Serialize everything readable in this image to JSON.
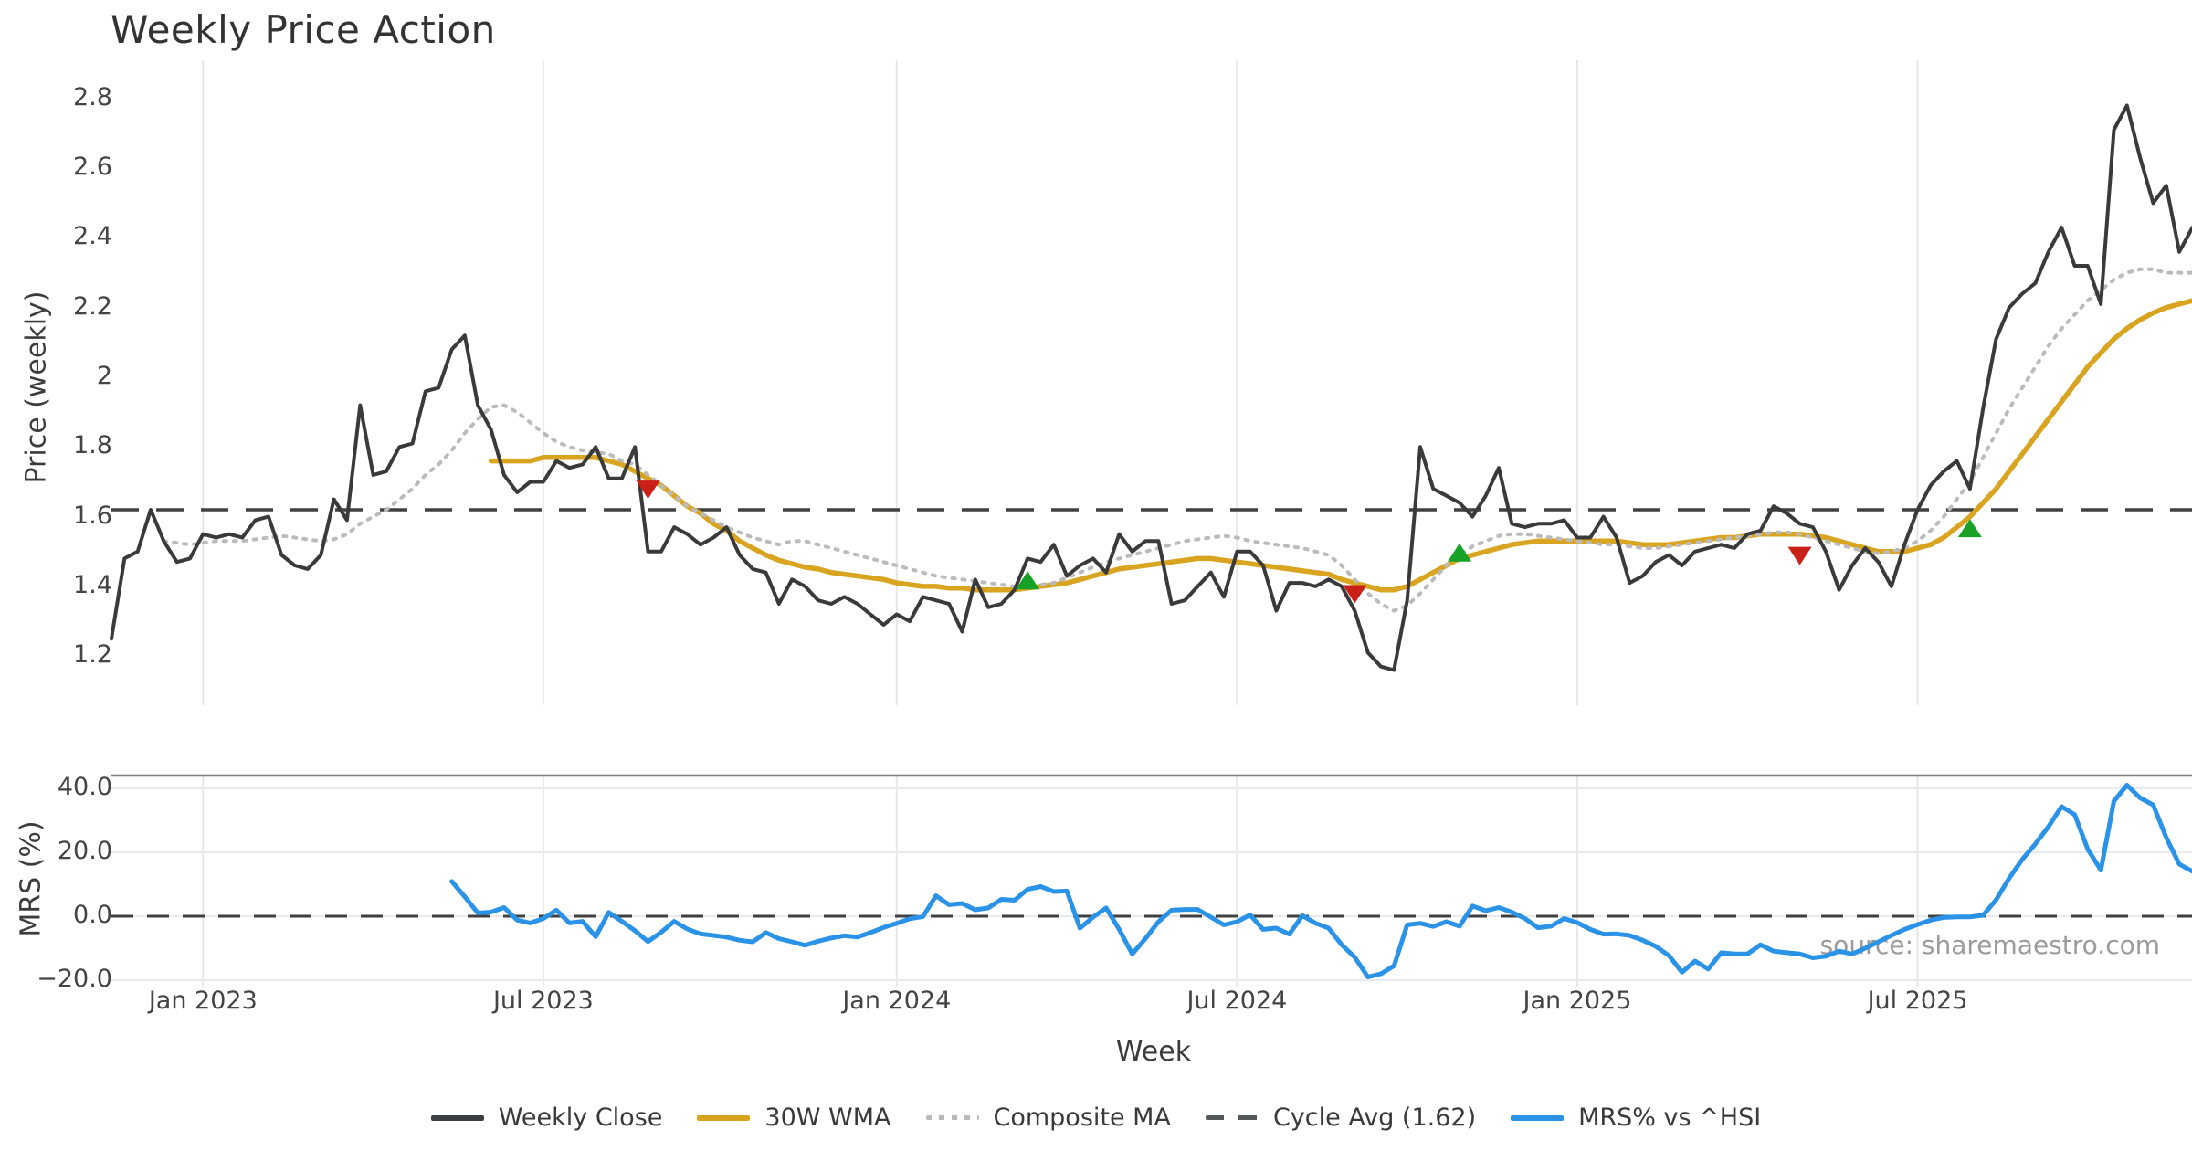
{
  "title": "Weekly Price Action",
  "source_note": "source: sharemaestro.com",
  "axes": {
    "price_axis_label": "Price (weekly)",
    "mrs_axis_label": "MRS (%)",
    "x_axis_label": "Week",
    "price_tick_labels": [
      "2.8",
      "2.6",
      "2.4",
      "2.2",
      "2",
      "1.8",
      "1.6",
      "1.4",
      "1.2"
    ],
    "price_tick_values": [
      2.8,
      2.6,
      2.4,
      2.2,
      2.0,
      1.8,
      1.6,
      1.4,
      1.2
    ],
    "mrs_tick_labels": [
      "40.0",
      "20.0",
      "0.0",
      "−20.0"
    ],
    "mrs_tick_values": [
      40,
      20,
      0,
      -20
    ],
    "x_tick_labels": [
      "Jan 2023",
      "Jul 2023",
      "Jan 2024",
      "Jul 2024",
      "Jan 2025",
      "Jul 2025"
    ],
    "x_tick_weeks": [
      7,
      33,
      60,
      86,
      112,
      138
    ]
  },
  "legend": {
    "items": [
      {
        "label": "Weekly Close",
        "style": "solid-dark"
      },
      {
        "label": "30W WMA",
        "style": "solid-gold"
      },
      {
        "label": "Composite MA",
        "style": "dotted-gray"
      },
      {
        "label": "Cycle Avg (1.62)",
        "style": "dashed-dark"
      },
      {
        "label": "MRS% vs ^HSI",
        "style": "solid-blue"
      }
    ]
  },
  "colors": {
    "weekly_close": "#3a3a3a",
    "wma": "#d9a41f",
    "composite": "#bbbbbb",
    "cycle_avg": "#404040",
    "mrs": "#2a93e8",
    "marker_up": "#18a127",
    "marker_down": "#c92118",
    "gridline": "#e7e7e7",
    "h_gridline": "#e9e9f0",
    "panel_spine": "#7f7f7f",
    "tick_text": "#444444",
    "source_text": "#9b9b9b"
  },
  "chart_data": [
    {
      "type": "line",
      "panel": "price",
      "title": "Weekly Price Action",
      "ylabel": "Price (weekly)",
      "xlabel": "Week",
      "ylim": [
        1.06,
        2.91
      ],
      "grid": "vertical-only",
      "legend_position": "bottom-center",
      "x_unit": "week-index (weekly samples, index 0 = mid-Nov 2022; ticks at Jan/Jul)",
      "cycle_avg_value": 1.62,
      "series": [
        {
          "name": "Weekly Close",
          "start_week": 0,
          "values": [
            1.25,
            1.48,
            1.5,
            1.62,
            1.53,
            1.47,
            1.48,
            1.55,
            1.54,
            1.55,
            1.54,
            1.59,
            1.6,
            1.49,
            1.46,
            1.45,
            1.49,
            1.65,
            1.59,
            1.92,
            1.72,
            1.73,
            1.8,
            1.81,
            1.96,
            1.97,
            2.08,
            2.12,
            1.92,
            1.85,
            1.72,
            1.67,
            1.7,
            1.7,
            1.76,
            1.74,
            1.75,
            1.8,
            1.71,
            1.71,
            1.8,
            1.5,
            1.5,
            1.57,
            1.55,
            1.52,
            1.54,
            1.57,
            1.49,
            1.45,
            1.44,
            1.35,
            1.42,
            1.4,
            1.36,
            1.35,
            1.37,
            1.35,
            1.32,
            1.29,
            1.32,
            1.3,
            1.37,
            1.36,
            1.35,
            1.27,
            1.42,
            1.34,
            1.35,
            1.39,
            1.48,
            1.47,
            1.52,
            1.43,
            1.46,
            1.48,
            1.44,
            1.55,
            1.5,
            1.53,
            1.53,
            1.35,
            1.36,
            1.4,
            1.44,
            1.37,
            1.5,
            1.5,
            1.46,
            1.33,
            1.41,
            1.41,
            1.4,
            1.42,
            1.4,
            1.33,
            1.21,
            1.17,
            1.16,
            1.36,
            1.8,
            1.68,
            1.66,
            1.64,
            1.6,
            1.66,
            1.74,
            1.58,
            1.57,
            1.58,
            1.58,
            1.59,
            1.54,
            1.54,
            1.6,
            1.54,
            1.41,
            1.43,
            1.47,
            1.49,
            1.46,
            1.5,
            1.51,
            1.52,
            1.51,
            1.55,
            1.56,
            1.63,
            1.61,
            1.58,
            1.57,
            1.5,
            1.39,
            1.46,
            1.51,
            1.47,
            1.4,
            1.52,
            1.62,
            1.69,
            1.73,
            1.76,
            1.68,
            1.91,
            2.11,
            2.2,
            2.24,
            2.27,
            2.36,
            2.43,
            2.32,
            2.32,
            2.21,
            2.71,
            2.78,
            2.63,
            2.5,
            2.55,
            2.36,
            2.43
          ]
        },
        {
          "name": "30W WMA",
          "start_week": 29,
          "values": [
            1.76,
            1.76,
            1.76,
            1.76,
            1.77,
            1.77,
            1.77,
            1.77,
            1.77,
            1.76,
            1.75,
            1.73,
            1.71,
            1.69,
            1.66,
            1.63,
            1.61,
            1.58,
            1.56,
            1.53,
            1.51,
            1.49,
            1.475,
            1.465,
            1.455,
            1.45,
            1.44,
            1.435,
            1.43,
            1.425,
            1.42,
            1.41,
            1.405,
            1.4,
            1.4,
            1.395,
            1.395,
            1.39,
            1.39,
            1.39,
            1.39,
            1.395,
            1.4,
            1.405,
            1.41,
            1.42,
            1.43,
            1.44,
            1.45,
            1.455,
            1.46,
            1.465,
            1.47,
            1.475,
            1.48,
            1.48,
            1.475,
            1.47,
            1.465,
            1.46,
            1.455,
            1.45,
            1.445,
            1.44,
            1.435,
            1.42,
            1.41,
            1.4,
            1.39,
            1.39,
            1.4,
            1.42,
            1.44,
            1.46,
            1.48,
            1.49,
            1.5,
            1.51,
            1.52,
            1.525,
            1.53,
            1.53,
            1.53,
            1.53,
            1.53,
            1.53,
            1.53,
            1.525,
            1.52,
            1.52,
            1.52,
            1.525,
            1.53,
            1.535,
            1.54,
            1.54,
            1.545,
            1.55,
            1.55,
            1.55,
            1.55,
            1.545,
            1.54,
            1.53,
            1.52,
            1.51,
            1.5,
            1.5,
            1.5,
            1.51,
            1.52,
            1.54,
            1.57,
            1.6,
            1.64,
            1.68,
            1.73,
            1.78,
            1.83,
            1.88,
            1.93,
            1.98,
            2.03,
            2.07,
            2.11,
            2.14,
            2.165,
            2.185,
            2.2,
            2.21,
            2.22
          ]
        },
        {
          "name": "Composite MA",
          "start_week": 4,
          "values": [
            1.53,
            1.525,
            1.52,
            1.525,
            1.53,
            1.53,
            1.53,
            1.535,
            1.54,
            1.545,
            1.54,
            1.535,
            1.53,
            1.535,
            1.55,
            1.58,
            1.6,
            1.62,
            1.65,
            1.68,
            1.72,
            1.75,
            1.79,
            1.84,
            1.88,
            1.915,
            1.92,
            1.9,
            1.87,
            1.84,
            1.815,
            1.8,
            1.79,
            1.785,
            1.78,
            1.76,
            1.75,
            1.72,
            1.69,
            1.66,
            1.63,
            1.61,
            1.59,
            1.57,
            1.555,
            1.54,
            1.53,
            1.52,
            1.53,
            1.53,
            1.52,
            1.51,
            1.5,
            1.49,
            1.48,
            1.47,
            1.46,
            1.45,
            1.44,
            1.43,
            1.425,
            1.42,
            1.415,
            1.41,
            1.405,
            1.4,
            1.4,
            1.405,
            1.41,
            1.425,
            1.44,
            1.455,
            1.47,
            1.48,
            1.49,
            1.5,
            1.51,
            1.52,
            1.53,
            1.535,
            1.54,
            1.545,
            1.54,
            1.53,
            1.525,
            1.52,
            1.515,
            1.51,
            1.5,
            1.49,
            1.46,
            1.42,
            1.38,
            1.35,
            1.33,
            1.345,
            1.38,
            1.42,
            1.46,
            1.49,
            1.515,
            1.53,
            1.545,
            1.55,
            1.55,
            1.545,
            1.54,
            1.535,
            1.53,
            1.525,
            1.52,
            1.52,
            1.515,
            1.51,
            1.51,
            1.515,
            1.52,
            1.525,
            1.53,
            1.535,
            1.54,
            1.545,
            1.55,
            1.555,
            1.555,
            1.55,
            1.54,
            1.53,
            1.52,
            1.51,
            1.5,
            1.495,
            1.5,
            1.51,
            1.53,
            1.56,
            1.6,
            1.65,
            1.7,
            1.77,
            1.84,
            1.91,
            1.97,
            2.03,
            2.09,
            2.14,
            2.18,
            2.22,
            2.25,
            2.28,
            2.3,
            2.31,
            2.31,
            2.3,
            2.3,
            2.3
          ]
        },
        {
          "name": "Cycle Avg (1.62)",
          "constant": 1.62
        }
      ],
      "markers": {
        "sell_down_red": [
          {
            "week": 41,
            "value": 1.68
          },
          {
            "week": 95,
            "value": 1.38
          },
          {
            "week": 129,
            "value": 1.49
          }
        ],
        "buy_up_green": [
          {
            "week": 70,
            "value": 1.42
          },
          {
            "week": 103,
            "value": 1.5
          },
          {
            "week": 142,
            "value": 1.57
          }
        ]
      }
    },
    {
      "type": "line",
      "panel": "mrs",
      "ylabel": "MRS (%)",
      "ylim": [
        -22,
        44
      ],
      "zero_line": 0,
      "series": [
        {
          "name": "MRS% vs ^HSI",
          "start_week": 26,
          "values": [
            10.9,
            6.1,
            1.0,
            1.3,
            2.7,
            -1.2,
            -2.1,
            -0.7,
            1.9,
            -2.1,
            -1.6,
            -6.4,
            1.2,
            -1.6,
            -4.5,
            -7.9,
            -5.0,
            -1.6,
            -4.0,
            -5.5,
            -6.0,
            -6.5,
            -7.5,
            -8.0,
            -5.1,
            -7.0,
            -8.0,
            -9.1,
            -7.8,
            -6.8,
            -6.1,
            -6.5,
            -5.1,
            -3.5,
            -2.2,
            -0.8,
            -0.1,
            6.4,
            3.6,
            4.0,
            2.0,
            2.6,
            5.3,
            5.0,
            8.4,
            9.3,
            7.7,
            7.9,
            -3.7,
            -0.3,
            2.6,
            -4.1,
            -11.8,
            -7.0,
            -1.7,
            1.9,
            2.1,
            2.1,
            -0.3,
            -2.7,
            -1.7,
            0.4,
            -4.1,
            -3.7,
            -5.6,
            0.2,
            -2.2,
            -3.7,
            -8.9,
            -12.8,
            -19.0,
            -18.0,
            -15.5,
            -2.7,
            -2.2,
            -3.2,
            -1.7,
            -3.1,
            3.2,
            1.7,
            2.7,
            1.3,
            -0.7,
            -3.6,
            -3.1,
            -0.7,
            -2.0,
            -4.1,
            -5.6,
            -5.5,
            -6.0,
            -7.5,
            -9.4,
            -12.3,
            -17.5,
            -14.0,
            -16.5,
            -11.4,
            -11.8,
            -11.8,
            -8.9,
            -10.9,
            -11.4,
            -11.8,
            -13.0,
            -12.5,
            -10.9,
            -11.8,
            -10.0,
            -8.0,
            -6.0,
            -4.1,
            -2.6,
            -1.2,
            -0.4,
            -0.2,
            -0.2,
            0.3,
            5.1,
            11.9,
            17.8,
            22.6,
            28.0,
            34.3,
            31.8,
            21.0,
            14.4,
            36.0,
            41.0,
            37.0,
            34.8,
            24.6,
            16.3,
            14.0
          ]
        }
      ]
    }
  ]
}
